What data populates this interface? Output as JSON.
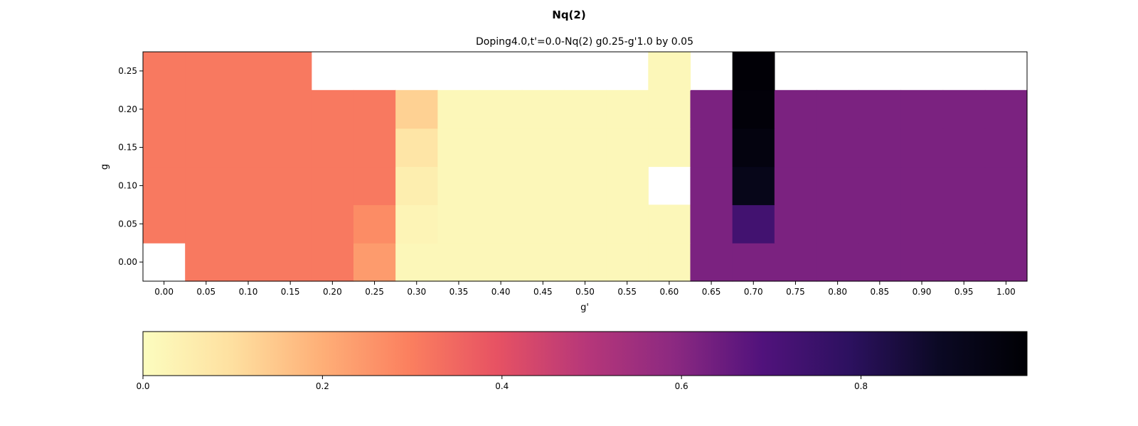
{
  "chart_data": {
    "type": "heatmap",
    "suptitle": "Nq(2)",
    "title": "Doping4.0,t'=0.0-Nq(2)  g0.25-g'1.0 by 0.05",
    "xlabel": "g'",
    "ylabel": "g",
    "x": [
      0.0,
      0.05,
      0.1,
      0.15,
      0.2,
      0.25,
      0.3,
      0.35,
      0.4,
      0.45,
      0.5,
      0.55,
      0.6,
      0.65,
      0.7,
      0.75,
      0.8,
      0.85,
      0.9,
      0.95,
      1.0
    ],
    "y": [
      0.0,
      0.05,
      0.1,
      0.15,
      0.2,
      0.25
    ],
    "xticklabels": [
      "0.00",
      "0.05",
      "0.10",
      "0.15",
      "0.20",
      "0.25",
      "0.30",
      "0.35",
      "0.40",
      "0.45",
      "0.50",
      "0.55",
      "0.60",
      "0.65",
      "0.70",
      "0.75",
      "0.80",
      "0.85",
      "0.90",
      "0.95",
      "1.00"
    ],
    "yticklabels": [
      "0.00",
      "0.05",
      "0.10",
      "0.15",
      "0.20",
      "0.25"
    ],
    "values": [
      [
        null,
        0.31,
        0.31,
        0.31,
        0.31,
        0.24,
        0.02,
        0.02,
        0.02,
        0.02,
        0.02,
        0.02,
        0.02,
        0.62,
        0.62,
        0.62,
        0.62,
        0.62,
        0.62,
        0.62,
        0.62
      ],
      [
        0.31,
        0.31,
        0.31,
        0.31,
        0.31,
        0.27,
        0.03,
        0.02,
        0.02,
        0.02,
        0.02,
        0.02,
        0.02,
        0.62,
        0.73,
        0.62,
        0.62,
        0.62,
        0.62,
        0.62,
        0.62
      ],
      [
        0.31,
        0.31,
        0.31,
        0.31,
        0.31,
        0.31,
        0.05,
        0.02,
        0.02,
        0.02,
        0.02,
        0.02,
        null,
        0.62,
        0.92,
        0.62,
        0.62,
        0.62,
        0.62,
        0.62,
        0.62
      ],
      [
        0.31,
        0.31,
        0.31,
        0.31,
        0.31,
        0.31,
        0.08,
        0.02,
        0.02,
        0.02,
        0.02,
        0.02,
        0.02,
        0.62,
        0.95,
        0.62,
        0.62,
        0.62,
        0.62,
        0.62,
        0.62
      ],
      [
        0.31,
        0.31,
        0.31,
        0.31,
        0.31,
        0.31,
        0.13,
        0.02,
        0.02,
        0.02,
        0.02,
        0.02,
        0.02,
        0.62,
        0.97,
        0.62,
        0.62,
        0.62,
        0.62,
        0.62,
        0.62
      ],
      [
        0.31,
        0.31,
        0.31,
        0.31,
        null,
        null,
        null,
        null,
        null,
        null,
        null,
        null,
        0.02,
        null,
        0.98,
        null,
        null,
        null,
        null,
        null,
        null
      ]
    ],
    "colormap": "magma_r",
    "vmin": 0.0,
    "vmax": 0.985,
    "colorbar": {
      "orientation": "horizontal",
      "placement": "bottom",
      "ticks": [
        0.0,
        0.2,
        0.4,
        0.6,
        0.8
      ],
      "ticklabels": [
        "0.0",
        "0.2",
        "0.4",
        "0.6",
        "0.8"
      ]
    },
    "grid": false
  }
}
